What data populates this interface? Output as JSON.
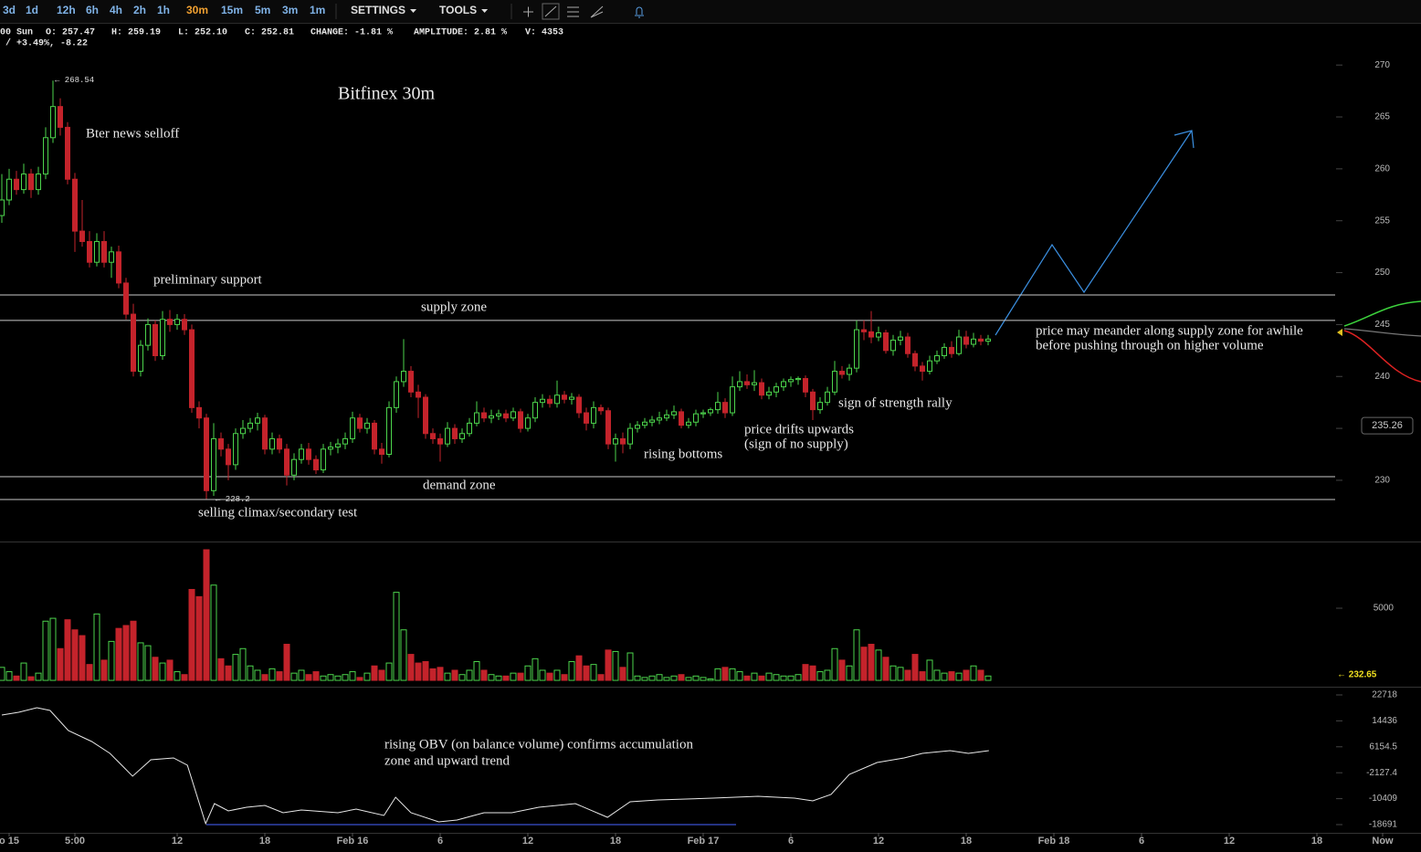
{
  "toolbar": {
    "intervals": [
      "3d",
      "1d",
      "12h",
      "6h",
      "4h",
      "2h",
      "1h",
      "30m",
      "15m",
      "5m",
      "3m",
      "1m"
    ],
    "active": 7,
    "menus": [
      "SETTINGS",
      "TOOLS"
    ]
  },
  "info": {
    "line1": [
      "00 Sun",
      "O: 257.47",
      "H: 259.19",
      "L: 252.10",
      "C: 252.81",
      "CHANGE: -1.81 %",
      "AMPLITUDE: 2.81 %",
      "V: 4353"
    ],
    "line2": "% / +3.49%, -8.22"
  },
  "chart_data": {
    "type": "candlestick",
    "title": "Bitfinex 30m",
    "up_color": "#4cd44c",
    "down_color": "#c4232b",
    "ylim": [
      224.1,
      273.8
    ],
    "yticks": [
      230,
      235,
      240,
      245,
      250,
      255,
      260,
      265,
      270
    ],
    "last_price": {
      "value": 235.26,
      "label": "235.26"
    },
    "levels": [
      247.85,
      245.4,
      230.35,
      228.15
    ],
    "extremes": [
      {
        "value": 268.54,
        "label": "← 268.54"
      },
      {
        "value": 228.2,
        "label": "← 228.2"
      }
    ],
    "annotations": [
      "Bter news selloff",
      "preliminary support",
      "supply zone",
      "selling climax/secondary test",
      "demand zone",
      "rising bottoms",
      "price drifts upwards",
      "(sign of no supply)",
      "sign of strength rally",
      "price may meander along supply zone for awhile",
      "before pushing through on higher volume",
      "rising OBV (on balance volume) confirms accumulation",
      "zone and upward trend"
    ],
    "categories": [
      "o 15",
      "5:00",
      "12",
      "18",
      "Feb 16",
      "6",
      "12",
      "18",
      "Feb 17",
      "6",
      "12",
      "18",
      "Feb 18",
      "6",
      "12",
      "18",
      "Now"
    ],
    "candles": [
      [
        255.5,
        259.5,
        254.8,
        257
      ],
      [
        257,
        260,
        256.5,
        259
      ],
      [
        259,
        259.8,
        257.5,
        258
      ],
      [
        258,
        260.5,
        257.6,
        259.5
      ],
      [
        259.5,
        260,
        257.2,
        258
      ],
      [
        258,
        260.2,
        257.5,
        259.5
      ],
      [
        259.5,
        264,
        259,
        263
      ],
      [
        263,
        268.5,
        262.5,
        266
      ],
      [
        266,
        266.8,
        263.2,
        264
      ],
      [
        264,
        264.5,
        258.5,
        259
      ],
      [
        259,
        259.6,
        252,
        254
      ],
      [
        254,
        257,
        252.5,
        253
      ],
      [
        253,
        254,
        250.5,
        251
      ],
      [
        251,
        253.8,
        250.6,
        253
      ],
      [
        253,
        254,
        250.5,
        251
      ],
      [
        251,
        252.5,
        249.5,
        252
      ],
      [
        252,
        252.6,
        248.5,
        249
      ],
      [
        249,
        249.5,
        245.5,
        246
      ],
      [
        246,
        247,
        240,
        240.5
      ],
      [
        240.5,
        243.5,
        240,
        243
      ],
      [
        243,
        245.6,
        242.5,
        245
      ],
      [
        245,
        245.4,
        241.5,
        242
      ],
      [
        242,
        246.3,
        241.6,
        245.5
      ],
      [
        245.5,
        246.4,
        244.3,
        245
      ],
      [
        245,
        246,
        244.5,
        245.5
      ],
      [
        245.5,
        246,
        244,
        244.5
      ],
      [
        244.5,
        245,
        236.5,
        237
      ],
      [
        237,
        237.6,
        235,
        236
      ],
      [
        236,
        236.4,
        228.2,
        229
      ],
      [
        229,
        235.5,
        228.5,
        234
      ],
      [
        234,
        234.6,
        232.3,
        233
      ],
      [
        233,
        233.5,
        230,
        231.5
      ],
      [
        231.5,
        235,
        231,
        234.5
      ],
      [
        234.5,
        235.8,
        234,
        235
      ],
      [
        235,
        236,
        234.6,
        235.5
      ],
      [
        235.5,
        236.5,
        234.8,
        236
      ],
      [
        236,
        236.3,
        232.5,
        233
      ],
      [
        233,
        234.6,
        232.5,
        234
      ],
      [
        234,
        234.4,
        232.6,
        233
      ],
      [
        233,
        233.5,
        229.5,
        230.5
      ],
      [
        230.5,
        232.6,
        230,
        232
      ],
      [
        232,
        233.5,
        231.6,
        233
      ],
      [
        233,
        233.6,
        231.5,
        232
      ],
      [
        232,
        232.4,
        230.6,
        231
      ],
      [
        231,
        233.5,
        230.7,
        233
      ],
      [
        233,
        233.7,
        232.4,
        233.2
      ],
      [
        233.2,
        234,
        232.6,
        233.5
      ],
      [
        233.5,
        234.6,
        233,
        234
      ],
      [
        234,
        236.6,
        233.6,
        236
      ],
      [
        236,
        236.4,
        234.6,
        235
      ],
      [
        235,
        236,
        234.5,
        235.5
      ],
      [
        235.5,
        235.8,
        232.5,
        233
      ],
      [
        233,
        233.6,
        231.6,
        232.5
      ],
      [
        232.5,
        237.6,
        232.2,
        237
      ],
      [
        237,
        240,
        236.5,
        239.5
      ],
      [
        239.5,
        243.6,
        239,
        240.5
      ],
      [
        240.5,
        241,
        238,
        238.5
      ],
      [
        238.5,
        239.2,
        236,
        238
      ],
      [
        238,
        238.3,
        234,
        234.5
      ],
      [
        234.5,
        235,
        233.5,
        234
      ],
      [
        234,
        234.5,
        231.8,
        233.5
      ],
      [
        233.5,
        235.6,
        233.2,
        235
      ],
      [
        235,
        235.4,
        233.5,
        234
      ],
      [
        234,
        235,
        233.6,
        234.5
      ],
      [
        234.5,
        236,
        234.2,
        235.5
      ],
      [
        235.5,
        237.6,
        235.2,
        236.5
      ],
      [
        236.5,
        237,
        235.6,
        236
      ],
      [
        236,
        236.8,
        235.5,
        236.2
      ],
      [
        236.2,
        236.8,
        235.8,
        236.4
      ],
      [
        236.4,
        236.8,
        235.6,
        236
      ],
      [
        236,
        237,
        235.7,
        236.6
      ],
      [
        236.6,
        236.9,
        234.6,
        235
      ],
      [
        235,
        236.4,
        234.7,
        236
      ],
      [
        236,
        238,
        235.6,
        237.5
      ],
      [
        237.5,
        238.3,
        237,
        237.8
      ],
      [
        237.8,
        238.2,
        237,
        237.4
      ],
      [
        237.4,
        239.6,
        237,
        238.2
      ],
      [
        238.2,
        238.6,
        237.4,
        237.8
      ],
      [
        237.8,
        238.4,
        237.3,
        238
      ],
      [
        238,
        238.3,
        236,
        236.5
      ],
      [
        236.5,
        237,
        234.8,
        235.5
      ],
      [
        235.5,
        237.6,
        235,
        237
      ],
      [
        237,
        237.3,
        236.3,
        236.7
      ],
      [
        236.7,
        237,
        233,
        233.5
      ],
      [
        233.5,
        234.5,
        231.8,
        234
      ],
      [
        234,
        234.6,
        232.6,
        233.5
      ],
      [
        233.5,
        235.5,
        233,
        235
      ],
      [
        235,
        235.7,
        234.6,
        235.3
      ],
      [
        235.3,
        236,
        235,
        235.6
      ],
      [
        235.6,
        236.2,
        235.2,
        235.8
      ],
      [
        235.8,
        236.6,
        235.4,
        236
      ],
      [
        236,
        236.8,
        235.7,
        236.3
      ],
      [
        236.3,
        237.2,
        235.9,
        236.6
      ],
      [
        236.6,
        236.9,
        235,
        235.3
      ],
      [
        235.3,
        236,
        235,
        235.6
      ],
      [
        235.6,
        236.8,
        235.2,
        236.4
      ],
      [
        236.4,
        236.8,
        236,
        236.5
      ],
      [
        236.5,
        237,
        236.2,
        236.8
      ],
      [
        236.8,
        238.5,
        236.4,
        237.5
      ],
      [
        237.5,
        237.9,
        236,
        236.5
      ],
      [
        236.5,
        240,
        236.2,
        239
      ],
      [
        239,
        240.5,
        238.6,
        239.5
      ],
      [
        239.5,
        240.2,
        238.8,
        239.2
      ],
      [
        239.2,
        240.6,
        238.6,
        239.4
      ],
      [
        239.4,
        239.8,
        237.8,
        238.2
      ],
      [
        238.2,
        239,
        237.8,
        238.5
      ],
      [
        238.5,
        239.4,
        238,
        239
      ],
      [
        239,
        239.8,
        238.6,
        239.5
      ],
      [
        239.5,
        240,
        239,
        239.7
      ],
      [
        239.7,
        240,
        239.2,
        239.8
      ],
      [
        239.8,
        240.1,
        238,
        238.5
      ],
      [
        238.5,
        238.8,
        235.8,
        236.8
      ],
      [
        236.8,
        238,
        236.4,
        237.5
      ],
      [
        237.5,
        239,
        237.2,
        238.5
      ],
      [
        238.5,
        241.5,
        238.2,
        240.5
      ],
      [
        240.5,
        241,
        239.8,
        240.2
      ],
      [
        240.2,
        241.2,
        239.6,
        240.8
      ],
      [
        240.8,
        245.4,
        240.4,
        244.5
      ],
      [
        244.5,
        245.4,
        243.5,
        244.3
      ],
      [
        244.3,
        246.3,
        243.2,
        243.8
      ],
      [
        243.8,
        244.8,
        243.4,
        244.2
      ],
      [
        244.2,
        244.5,
        242.2,
        242.5
      ],
      [
        242.5,
        244,
        242,
        243.5
      ],
      [
        243.5,
        244.4,
        243,
        243.8
      ],
      [
        243.8,
        244.2,
        241.8,
        242.2
      ],
      [
        242.2,
        242.5,
        240.5,
        241
      ],
      [
        241,
        241.4,
        239.6,
        240.5
      ],
      [
        240.5,
        242,
        240.2,
        241.5
      ],
      [
        241.5,
        242.5,
        241.2,
        242
      ],
      [
        242,
        243.2,
        241.7,
        242.8
      ],
      [
        242.8,
        243.4,
        241.8,
        242.2
      ],
      [
        242.2,
        244.5,
        242,
        243.8
      ],
      [
        243.8,
        244.4,
        242.7,
        243.1
      ],
      [
        243.1,
        244.2,
        242.8,
        243.6
      ],
      [
        243.6,
        244,
        243,
        243.4
      ],
      [
        243.4,
        244,
        243,
        243.6
      ]
    ],
    "volume": {
      "ylim": [
        -440,
        9620
      ],
      "yticks": [
        5000
      ],
      "label": "← 232.65",
      "values": [
        900,
        600,
        300,
        1200,
        250,
        500,
        4100,
        4300,
        2200,
        4200,
        3500,
        3100,
        1100,
        4600,
        1400,
        2700,
        3600,
        3800,
        4100,
        2600,
        2400,
        1600,
        1200,
        1400,
        600,
        400,
        6300,
        5800,
        9050,
        6600,
        1500,
        1000,
        1800,
        2200,
        1000,
        700,
        400,
        800,
        600,
        2500,
        500,
        700,
        400,
        600,
        300,
        400,
        300,
        400,
        600,
        200,
        500,
        1000,
        700,
        1200,
        6100,
        3500,
        1800,
        1200,
        1300,
        800,
        900,
        500,
        700,
        400,
        700,
        1300,
        700,
        400,
        300,
        300,
        500,
        500,
        1000,
        1500,
        700,
        500,
        700,
        400,
        1300,
        1700,
        1000,
        1100,
        400,
        2100,
        2000,
        900,
        1900,
        300,
        200,
        300,
        400,
        200,
        300,
        400,
        200,
        300,
        200,
        100,
        800,
        900,
        800,
        600,
        300,
        500,
        300,
        500,
        400,
        300,
        300,
        400,
        1100,
        1000,
        600,
        700,
        2200,
        1400,
        1000,
        3500,
        2300,
        2500,
        2100,
        1600,
        1000,
        900,
        700,
        1800,
        600,
        1400,
        700,
        500,
        600,
        500,
        700,
        1000,
        700,
        300
      ]
    },
    "obv": {
      "ylim": [
        -21315,
        25340
      ],
      "yticks": [
        22718,
        14436,
        6154.5,
        -2127.4,
        -10409,
        -18691
      ],
      "x": [
        0,
        2.3,
        4.8,
        6.6,
        9.1,
        12.3,
        14.8,
        17.9,
        20.4,
        23.5,
        25.4,
        27.9,
        29.1,
        31,
        33.5,
        36,
        38.5,
        41,
        46,
        48.5,
        52.3,
        53.9,
        56,
        59.8,
        62.3,
        66,
        69.8,
        73.5,
        78.5,
        82.9,
        86,
        89.8,
        97.3,
        103.5,
        108.5,
        111,
        113.5,
        116,
        119.8,
        123.5,
        126,
        129.8,
        132.3,
        135.1
      ],
      "values": [
        16303,
        17178,
        18636,
        17761,
        11346,
        7846,
        4056,
        -3234,
        2015,
        2598,
        265,
        -18398,
        -11983,
        -14316,
        -13149,
        -12566,
        -14899,
        -14024,
        -14899,
        -13732,
        -15773,
        -9941,
        -14899,
        -17815,
        -17232,
        -14899,
        -14899,
        -13149,
        -11983,
        -16357,
        -11400,
        -10816,
        -10233,
        -9650,
        -10233,
        -11108,
        -9067,
        -2651,
        1139,
        2598,
        4056,
        4931,
        4056,
        4931
      ]
    }
  }
}
